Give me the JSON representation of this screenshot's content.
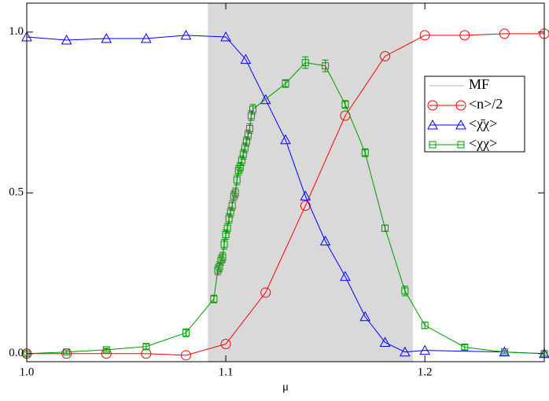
{
  "chart_data": {
    "type": "line",
    "xlabel": "μ",
    "xlim": [
      1.0,
      1.26
    ],
    "ylim": [
      -0.025,
      1.09
    ],
    "xticks": [
      {
        "value": 1.0,
        "label": "1.0"
      },
      {
        "value": 1.1,
        "label": "1.1"
      },
      {
        "value": 1.2,
        "label": "1.2"
      }
    ],
    "yticks": [
      {
        "value": 0,
        "label": "0.0"
      },
      0.5,
      {
        "value": 1.0,
        "label": "1.0"
      }
    ],
    "legend": "upper right",
    "shade": {
      "name": "MF",
      "x": [
        1.091,
        1.194
      ],
      "color": "#d9d9d9"
    },
    "series": [
      {
        "name": "<n>/2",
        "color": "#ff0000",
        "marker": "circle",
        "x": [
          1.0,
          1.02,
          1.04,
          1.06,
          1.08,
          1.1,
          1.12,
          1.14,
          1.16,
          1.18,
          1.2,
          1.22,
          1.24,
          1.26
        ],
        "values": [
          0.0,
          0.0,
          0.0,
          0.0,
          -0.005,
          0.03,
          0.19,
          0.46,
          0.74,
          0.925,
          0.99,
          0.99,
          0.995,
          0.995
        ]
      },
      {
        "name": "<χ̄χ>",
        "color": "#0000ff",
        "marker": "triangle",
        "x": [
          1.0,
          1.02,
          1.04,
          1.06,
          1.08,
          1.1,
          1.11,
          1.12,
          1.13,
          1.14,
          1.15,
          1.16,
          1.17,
          1.18,
          1.19,
          1.2,
          1.24,
          1.26
        ],
        "values": [
          0.985,
          0.975,
          0.98,
          0.98,
          0.99,
          0.985,
          0.915,
          0.79,
          0.665,
          0.49,
          0.35,
          0.24,
          0.115,
          0.035,
          0.005,
          0.01,
          0.005,
          0.0
        ]
      },
      {
        "name": "<χχ>",
        "color": "#009900",
        "marker": "square",
        "x": [
          1.0,
          1.02,
          1.04,
          1.06,
          1.08,
          1.094,
          1.096,
          1.0968,
          1.0976,
          1.0984,
          1.0992,
          1.1,
          1.1008,
          1.1016,
          1.1024,
          1.1032,
          1.104,
          1.1048,
          1.1056,
          1.1064,
          1.1072,
          1.108,
          1.1088,
          1.1096,
          1.1104,
          1.1112,
          1.112,
          1.1128,
          1.1136,
          1.13,
          1.14,
          1.15,
          1.16,
          1.17,
          1.18,
          1.19,
          1.2,
          1.22,
          1.24,
          1.26
        ],
        "values": [
          0.0,
          0.005,
          0.012,
          0.022,
          0.065,
          0.17,
          0.26,
          0.27,
          0.29,
          0.3,
          0.34,
          0.37,
          0.39,
          0.42,
          0.44,
          0.46,
          0.49,
          0.5,
          0.54,
          0.57,
          0.58,
          0.6,
          0.62,
          0.64,
          0.66,
          0.68,
          0.7,
          0.74,
          0.76,
          0.84,
          0.905,
          0.895,
          0.775,
          0.625,
          0.39,
          0.195,
          0.088,
          0.02,
          0.005,
          0.0
        ],
        "errors": [
          0.005,
          0.005,
          0.005,
          0.008,
          0.012,
          0.012,
          0.015,
          0.015,
          0.015,
          0.015,
          0.015,
          0.015,
          0.015,
          0.015,
          0.015,
          0.015,
          0.015,
          0.015,
          0.015,
          0.015,
          0.015,
          0.015,
          0.015,
          0.015,
          0.015,
          0.015,
          0.015,
          0.015,
          0.015,
          0.012,
          0.018,
          0.018,
          0.012,
          0.012,
          0.01,
          0.015,
          0.01,
          0.008,
          0.005,
          0.005
        ]
      }
    ]
  }
}
